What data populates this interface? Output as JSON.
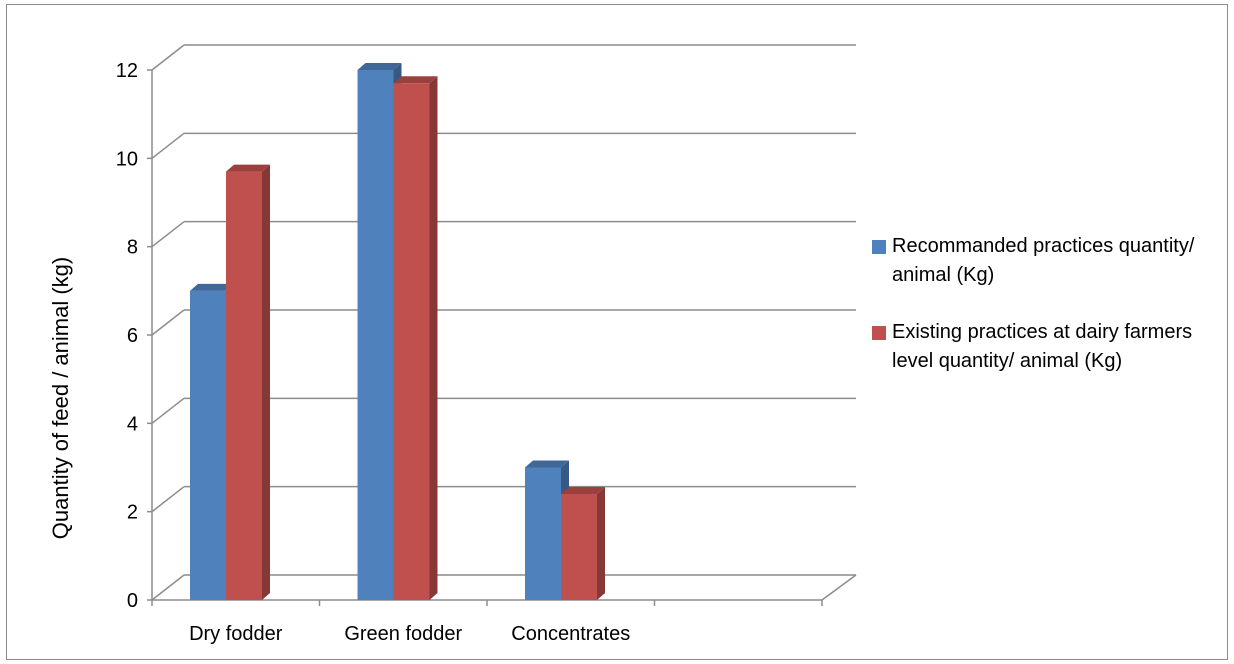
{
  "chart_data": {
    "type": "bar",
    "categories": [
      "Dry fodder",
      "Green fodder",
      "Concentrates"
    ],
    "series": [
      {
        "name": "Recommanded practices quantity/ animal (Kg)",
        "values": [
          7,
          12,
          3
        ],
        "color": "#4f81bd"
      },
      {
        "name": "Existing practices at dairy farmers level quantity/ animal (Kg)",
        "values": [
          9.7,
          11.7,
          2.4
        ],
        "color": "#c0504d"
      }
    ],
    "ylabel": "Quantity of feed / animal (kg)",
    "ylim": [
      0,
      12
    ],
    "yticks": [
      "0",
      "2",
      "4",
      "6",
      "8",
      "10",
      "12"
    ],
    "grid": true,
    "legend_position": "right",
    "style": "3d-clustered-column"
  }
}
